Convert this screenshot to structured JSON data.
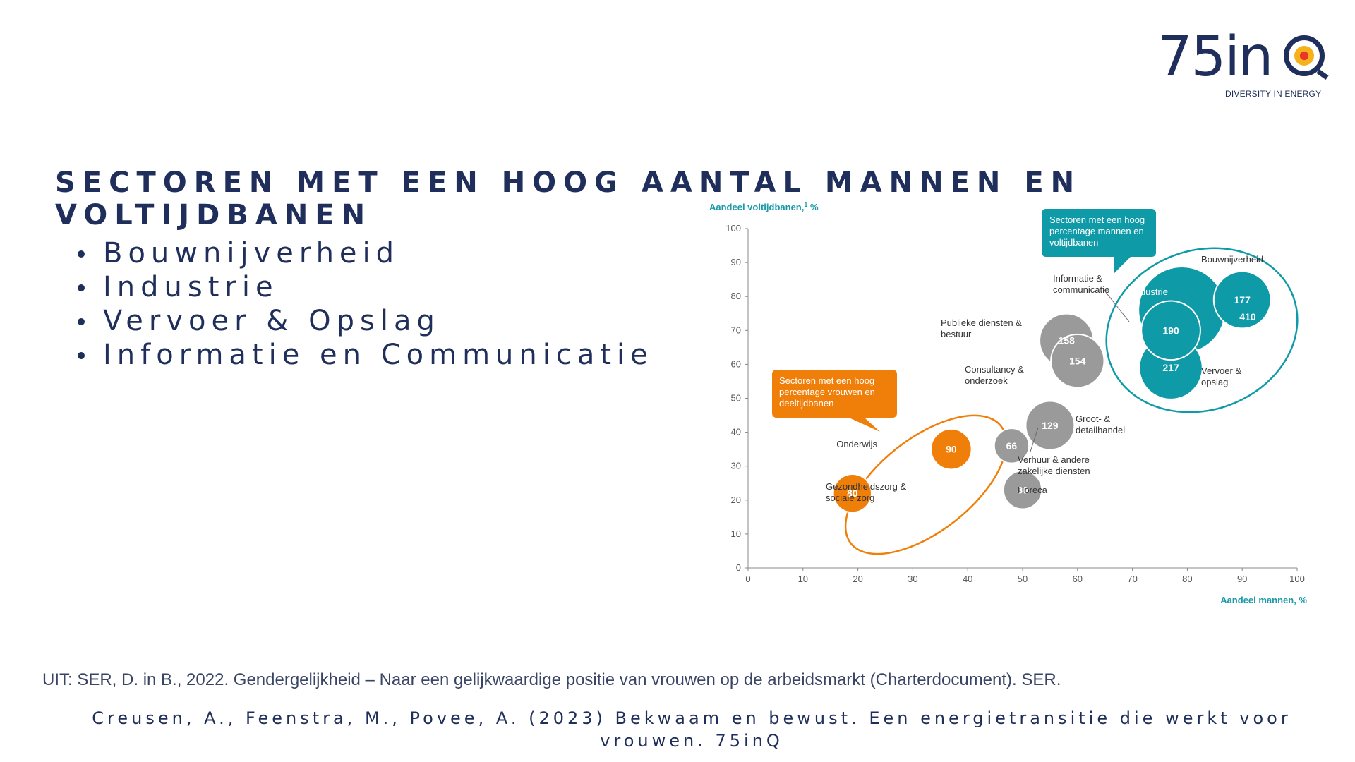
{
  "logo": {
    "name": "75inQ",
    "tagline": "DIVERSITY IN ENERGY"
  },
  "title": "SECTOREN MET EEN HOOG AANTAL MANNEN EN VOLTIJDBANEN",
  "bullets": [
    "Bouwnijverheid",
    "Industrie",
    "Vervoer & Opslag",
    "Informatie en Communicatie"
  ],
  "source": "UIT: SER, D. in B., 2022. Gendergelijkheid – Naar een gelijkwaardige positie van vrouwen op de arbeidsmarkt (Charterdocument). SER.",
  "reference": "Creusen, A., Feenstra, M., Povee, A. (2023) Bekwaam en bewust. Een energietransitie die werkt voor vrouwen. 75inQ",
  "colors": {
    "navy": "#1f2e5a",
    "teal": "#0e9aa7",
    "orange": "#f07f0a",
    "gray": "#9a9a9a"
  },
  "chart_data": {
    "type": "scatter",
    "xlabel": "Aandeel mannen, %",
    "ylabel": "Aandeel voltijdbanen,",
    "ylabel_sup": "1",
    "ylabel_unit": "%",
    "xlim": [
      0,
      100
    ],
    "ylim": [
      0,
      100
    ],
    "xticks": [
      0,
      10,
      20,
      30,
      40,
      50,
      60,
      70,
      80,
      90,
      100
    ],
    "yticks": [
      0,
      10,
      20,
      30,
      40,
      50,
      60,
      70,
      80,
      90,
      100
    ],
    "points": [
      {
        "label": "Gezondheidszorg & sociale zorg",
        "x": 19,
        "y": 22,
        "size": 80,
        "group": "orange"
      },
      {
        "label": "Onderwijs",
        "x": 37,
        "y": 35,
        "size": 90,
        "group": "orange"
      },
      {
        "label": "Horeca",
        "x": 50,
        "y": 23,
        "size": 80,
        "group": "gray"
      },
      {
        "label": "Verhuur & andere zakelijke diensten",
        "x": 48,
        "y": 36,
        "size": 66,
        "group": "gray"
      },
      {
        "label": "Groot- & detailhandel",
        "x": 55,
        "y": 42,
        "size": 129,
        "group": "gray"
      },
      {
        "label": "Publieke diensten & bestuur",
        "x": 58,
        "y": 67,
        "size": 158,
        "group": "gray"
      },
      {
        "label": "Consultancy & onderzoek",
        "x": 60,
        "y": 61,
        "size": 154,
        "group": "gray"
      },
      {
        "label": "Informatie & communicatie",
        "x": 77,
        "y": 70,
        "size": 190,
        "group": "teal"
      },
      {
        "label": "Industrie",
        "x": 79,
        "y": 76,
        "size": 410,
        "group": "teal"
      },
      {
        "label": "Vervoer & opslag",
        "x": 77,
        "y": 59,
        "size": 217,
        "group": "teal"
      },
      {
        "label": "Bouwnijverheid",
        "x": 90,
        "y": 79,
        "size": 177,
        "group": "teal"
      }
    ],
    "callouts": [
      {
        "text": [
          "Sectoren met een hoog",
          "percentage vrouwen en",
          "deeltijdbanen"
        ],
        "group": "orange"
      },
      {
        "text": [
          "Sectoren met een hoog",
          "percentage mannen en",
          "voltijdbanen"
        ],
        "group": "teal"
      }
    ]
  }
}
